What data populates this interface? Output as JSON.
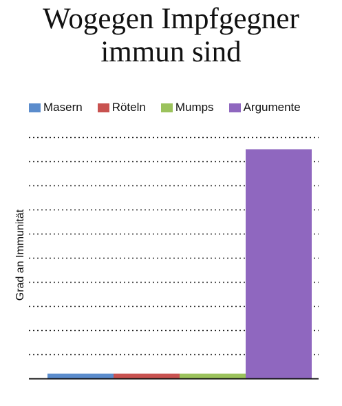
{
  "chart_data": {
    "type": "bar",
    "title_lines": [
      "Wogegen Impfgegner",
      "immun sind"
    ],
    "ylabel": "Grad an Immunität",
    "xlabel": "",
    "categories": [
      "Masern",
      "Röteln",
      "Mumps",
      "Argumente"
    ],
    "values": [
      2,
      2,
      2,
      95
    ],
    "colors": [
      "#5b8ccc",
      "#c85250",
      "#9bc25c",
      "#8f67bf"
    ],
    "ylim": [
      0,
      100
    ],
    "grid": true,
    "grid_style": "dotted",
    "legend_position": "top"
  }
}
